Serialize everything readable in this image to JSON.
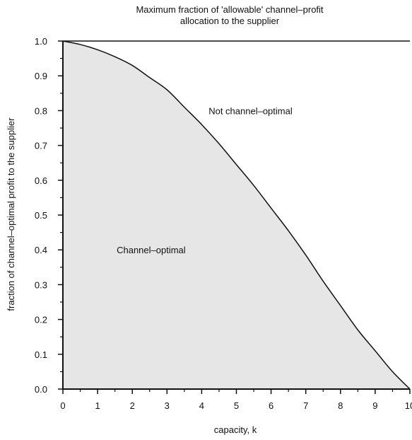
{
  "chart_data": {
    "type": "area",
    "title_lines": [
      "Maximum fraction of  'allowable' channel–profit",
      "allocation to  the  supplier"
    ],
    "xlabel": "capacity, k",
    "ylabel": "fraction of channel–optimal profit to the supplier",
    "xlim": [
      0,
      10
    ],
    "ylim": [
      0,
      1
    ],
    "x_ticks": [
      0,
      1,
      2,
      3,
      4,
      5,
      6,
      7,
      8,
      9,
      10
    ],
    "y_ticks": [
      0.0,
      0.1,
      0.2,
      0.3,
      0.4,
      0.5,
      0.6,
      0.7,
      0.8,
      0.9,
      1.0
    ],
    "x_tick_labels": [
      "0",
      "1",
      "2",
      "3",
      "4",
      "5",
      "6",
      "7",
      "8",
      "9",
      "10"
    ],
    "y_tick_labels": [
      "0.0",
      "0.1",
      "0.2",
      "0.3",
      "0.4",
      "0.5",
      "0.6",
      "0.7",
      "0.8",
      "0.9",
      "1.0"
    ],
    "series": [
      {
        "x": [
          0,
          0.5,
          1,
          1.5,
          2,
          2.5,
          3,
          3.5,
          4,
          4.5,
          5,
          5.5,
          6,
          6.5,
          7,
          7.5,
          8,
          8.5,
          9,
          9.5,
          10
        ],
        "y": [
          1.0,
          0.99,
          0.975,
          0.955,
          0.93,
          0.895,
          0.86,
          0.81,
          0.76,
          0.705,
          0.645,
          0.585,
          0.52,
          0.455,
          0.385,
          0.31,
          0.24,
          0.17,
          0.11,
          0.05,
          0.0
        ]
      }
    ],
    "annotations": [
      {
        "text": "Not channel–optimal",
        "x": 4.2,
        "y": 0.8
      },
      {
        "text": "Channel–optimal",
        "x": 1.55,
        "y": 0.4
      }
    ],
    "fill_color": "#e6e6e6",
    "line_color": "#111111",
    "grid": false
  }
}
